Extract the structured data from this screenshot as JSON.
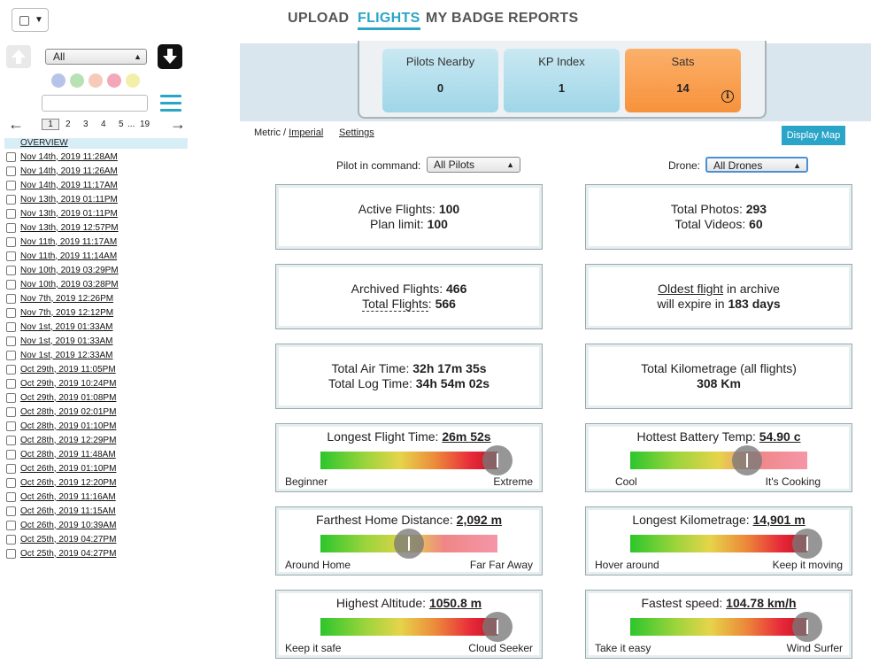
{
  "nav": {
    "tabs": [
      "UPLOAD",
      "FLIGHTS",
      "MY BADGE",
      "REPORTS"
    ],
    "active": "FLIGHTS"
  },
  "sidebar": {
    "filter_value": "All",
    "color_dots": [
      "#b7c4ea",
      "#b8e2b4",
      "#f7c9b8",
      "#f2a8b8",
      "#f2f0a8"
    ],
    "search_placeholder": "",
    "pager": {
      "prev": "←",
      "current": "1",
      "pages": [
        "2",
        "3",
        "4",
        "5",
        "...",
        "19"
      ],
      "next": "→"
    },
    "overview_label": "OVERVIEW",
    "flights": [
      "Nov 14th, 2019 11:28AM",
      "Nov 14th, 2019 11:26AM",
      "Nov 14th, 2019 11:17AM",
      "Nov 13th, 2019 01:11PM",
      "Nov 13th, 2019 01:11PM",
      "Nov 13th, 2019 12:57PM",
      "Nov 11th, 2019 11:17AM",
      "Nov 11th, 2019 11:14AM",
      "Nov 10th, 2019 03:29PM",
      "Nov 10th, 2019 03:28PM",
      "Nov 7th, 2019 12:26PM",
      "Nov 7th, 2019 12:12PM",
      "Nov 1st, 2019 01:33AM",
      "Nov 1st, 2019 01:33AM",
      "Nov 1st, 2019 12:33AM",
      "Oct 29th, 2019 11:05PM",
      "Oct 29th, 2019 10:24PM",
      "Oct 29th, 2019 01:08PM",
      "Oct 28th, 2019 02:01PM",
      "Oct 28th, 2019 01:10PM",
      "Oct 28th, 2019 12:29PM",
      "Oct 28th, 2019 11:48AM",
      "Oct 26th, 2019 01:10PM",
      "Oct 26th, 2019 12:20PM",
      "Oct 26th, 2019 11:16AM",
      "Oct 26th, 2019 11:15AM",
      "Oct 26th, 2019 10:39AM",
      "Oct 25th, 2019 04:27PM",
      "Oct 25th, 2019 04:27PM"
    ]
  },
  "stats": {
    "pilots_nearby": {
      "label": "Pilots Nearby",
      "value": "0"
    },
    "kp_index": {
      "label": "KP Index",
      "value": "1"
    },
    "sats": {
      "label": "Sats",
      "value": "14",
      "info": "i"
    }
  },
  "toolbar": {
    "metric": "Metric",
    "separator": "/",
    "imperial": "Imperial",
    "settings": "Settings",
    "display_map": "Display Map",
    "pilot_label": "Pilot in command:",
    "pilot_value": "All Pilots",
    "drone_label": "Drone:",
    "drone_value": "All Drones"
  },
  "cards": {
    "active_flights": {
      "label": "Active Flights:",
      "value": "100"
    },
    "plan_limit": {
      "label": "Plan limit:",
      "value": "100"
    },
    "total_photos": {
      "label": "Total Photos:",
      "value": "293"
    },
    "total_videos": {
      "label": "Total Videos:",
      "value": "60"
    },
    "archived_flights": {
      "label": "Archived Flights:",
      "value": "466"
    },
    "total_flights": {
      "label": "Total Flights",
      "colon": ":",
      "value": "566"
    },
    "oldest_link": "Oldest flight",
    "oldest_rest": " in archive",
    "expire_prefix": "will expire in ",
    "expire_value": "183 days",
    "total_air": {
      "label": "Total Air Time:",
      "value": "32h 17m 35s"
    },
    "total_log": {
      "label": "Total Log Time:",
      "value": "34h 54m 02s"
    },
    "kilometrage_label": "Total Kilometrage (all flights)",
    "kilometrage_value": "308 Km"
  },
  "gauges": {
    "longest_time": {
      "label": "Longest Flight Time:",
      "value": "26m 52s",
      "low": "Beginner",
      "high": "Extreme",
      "level": 1.0,
      "style": "full"
    },
    "battery_temp": {
      "label": "Hottest Battery Temp:",
      "value": "54.90 c",
      "low": "Cool",
      "high": "It's Cooking",
      "level": 0.66,
      "style": "part"
    },
    "home_distance": {
      "label": "Farthest Home Distance:",
      "value": "2,092 m",
      "low": "Around Home",
      "high": "Far Far Away",
      "level": 0.5,
      "style": "part"
    },
    "longest_km": {
      "label": "Longest Kilometrage:",
      "value": "14,901 m",
      "low": "Hover around",
      "high": "Keep it moving",
      "level": 1.0,
      "style": "full"
    },
    "altitude": {
      "label": "Highest Altitude:",
      "value": "1050.8 m",
      "low": "Keep it safe",
      "high": "Cloud Seeker",
      "level": 1.0,
      "style": "full"
    },
    "speed": {
      "label": "Fastest speed:",
      "value": "104.78 km/h",
      "low": "Take it easy",
      "high": "Wind Surfer",
      "level": 1.0,
      "style": "full"
    }
  }
}
